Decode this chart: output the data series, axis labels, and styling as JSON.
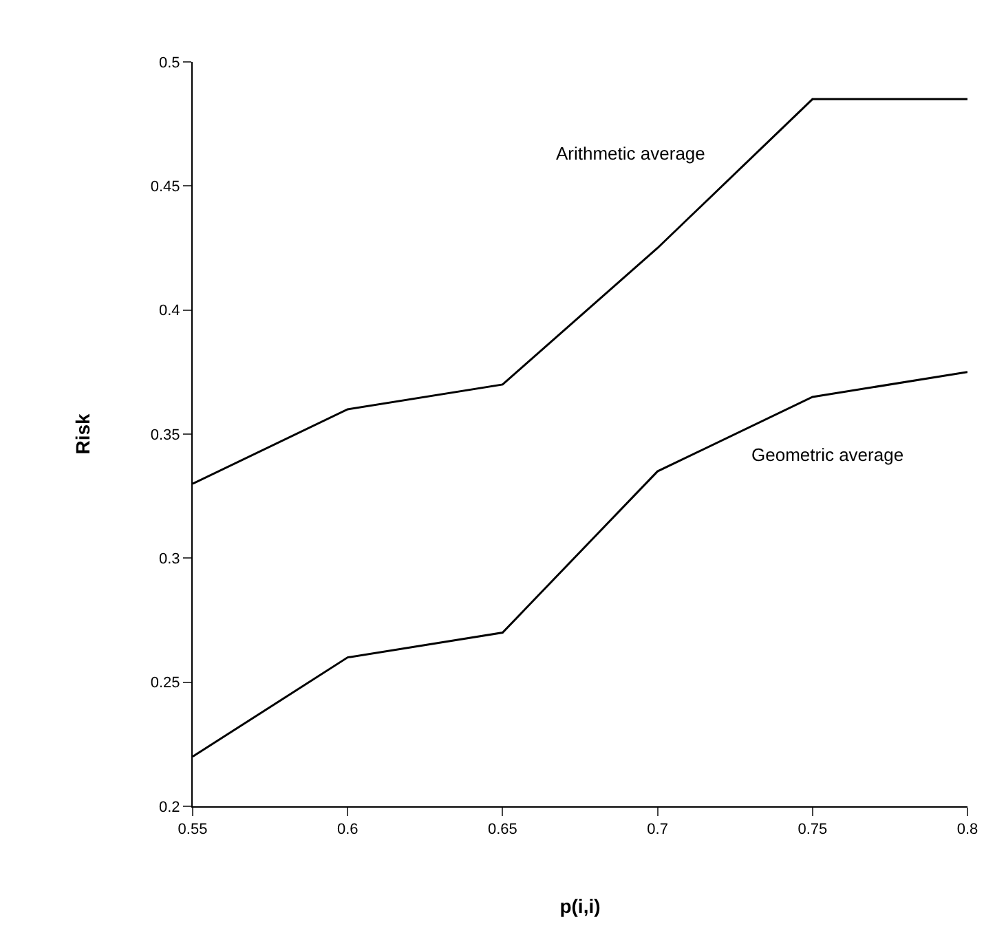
{
  "chart_data": {
    "type": "line",
    "xlabel": "p(i,i)",
    "ylabel": "Risk",
    "x": [
      0.55,
      0.6,
      0.65,
      0.7,
      0.75,
      0.8
    ],
    "series": [
      {
        "name": "Arithmetic average",
        "color": "#000000",
        "values": [
          0.33,
          0.36,
          0.37,
          0.425,
          0.485,
          0.485
        ]
      },
      {
        "name": "Geometric average",
        "color": "#000000",
        "values": [
          0.22,
          0.26,
          0.27,
          0.335,
          0.365,
          0.375
        ]
      }
    ],
    "xlim": [
      0.55,
      0.8
    ],
    "xticks": [
      0.55,
      0.6,
      0.65,
      0.7,
      0.75,
      0.8
    ],
    "ylim": [
      0.2,
      0.5
    ],
    "yticks": [
      0.2,
      0.25,
      0.3,
      0.35,
      0.4,
      0.45,
      0.5
    ],
    "grid": false,
    "legend": false,
    "marker": "none",
    "line_style": "solid"
  }
}
